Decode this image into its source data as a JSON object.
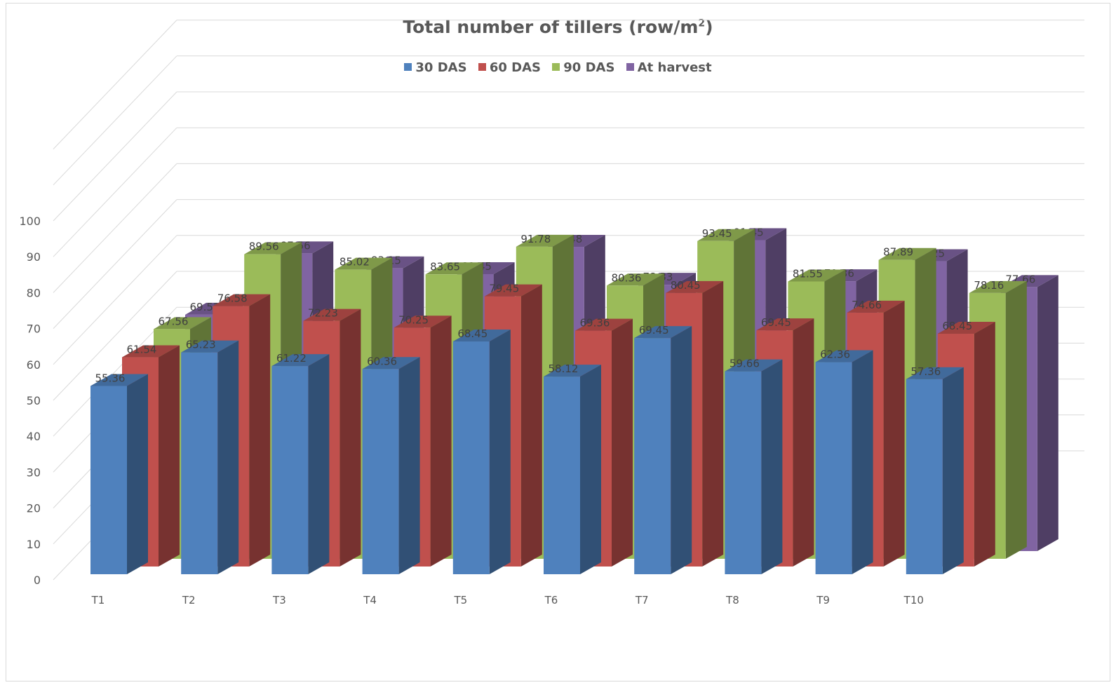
{
  "chart_data": {
    "type": "bar",
    "title_main": "Total number of tillers (row/m",
    "title_sup": "2",
    "title_end": ")",
    "xlabel": "",
    "ylabel": "",
    "ylim": [
      0,
      100
    ],
    "yticks": [
      0,
      10,
      20,
      30,
      40,
      50,
      60,
      70,
      80,
      90,
      100
    ],
    "grid": true,
    "legend_position": "top",
    "categories": [
      "T1",
      "T2",
      "T3",
      "T4",
      "T5",
      "T6",
      "T7",
      "T8",
      "T9",
      "T10"
    ],
    "series": [
      {
        "name": "30 DAS",
        "color": "#4f81bd",
        "values": [
          55.36,
          65.23,
          61.22,
          60.36,
          68.45,
          58.12,
          69.45,
          59.66,
          62.36,
          57.36
        ]
      },
      {
        "name": "60 DAS",
        "color": "#c0504d",
        "values": [
          61.54,
          76.58,
          72.23,
          70.25,
          79.45,
          69.36,
          80.45,
          69.45,
          74.66,
          68.45
        ]
      },
      {
        "name": "90 DAS",
        "color": "#9bbb59",
        "values": [
          67.56,
          89.56,
          85.02,
          83.65,
          91.78,
          80.36,
          93.45,
          81.55,
          87.89,
          78.16
        ]
      },
      {
        "name": "At harvest",
        "color": "#8064a2",
        "values": [
          69.52,
          87.56,
          83.15,
          81.45,
          89.48,
          78.33,
          91.45,
          79.36,
          85.25,
          77.66
        ]
      }
    ]
  }
}
